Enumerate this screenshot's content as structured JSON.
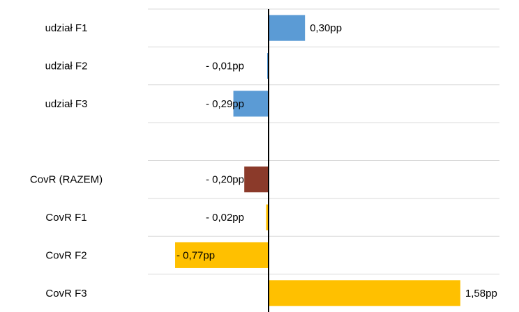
{
  "chart_data": {
    "type": "bar",
    "orientation": "horizontal",
    "title": "",
    "xlabel": "",
    "ylabel": "",
    "grid": true,
    "legend": "none",
    "xlim": [
      -1.0,
      2.0
    ],
    "categories": [
      "udział F1",
      "udział F2",
      "udział F3",
      "",
      "CovR (RAZEM)",
      "CovR F1",
      "CovR F2",
      "CovR F3"
    ],
    "values": [
      0.3,
      -0.01,
      -0.29,
      null,
      -0.2,
      -0.02,
      -0.77,
      1.58
    ],
    "data_labels": [
      "0,30pp",
      "- 0,01pp",
      "- 0,29pp",
      "",
      "- 0,20pp",
      "- 0,02pp",
      "- 0,77pp",
      "1,58pp"
    ],
    "colors": [
      "#5b9bd5",
      "#5b9bd5",
      "#5b9bd5",
      "#ffffff",
      "#8b3a2a",
      "#ffc000",
      "#ffc000",
      "#ffc000"
    ]
  }
}
